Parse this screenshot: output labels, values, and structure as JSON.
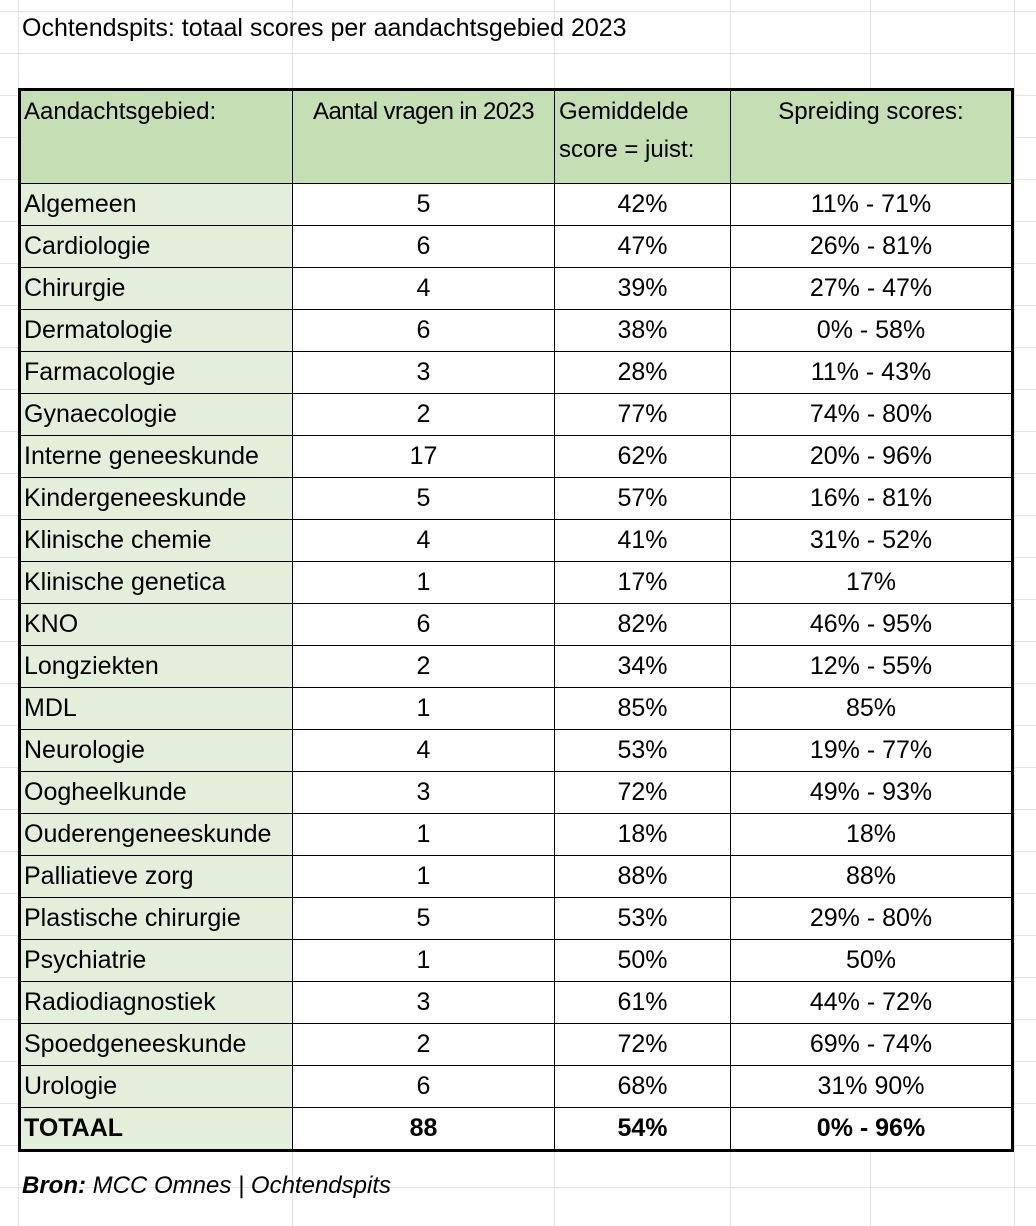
{
  "title": "Ochtendspits: totaal scores per aandachtsgebied 2023",
  "table": {
    "header": [
      "Aandachtsgebied:",
      "Aantal vragen in 2023",
      "Gemiddelde score = juist:",
      "Spreiding scores:"
    ],
    "rows": [
      [
        "Algemeen",
        "5",
        "42%",
        "11% - 71%"
      ],
      [
        "Cardiologie",
        "6",
        "47%",
        "26% - 81%"
      ],
      [
        "Chirurgie",
        "4",
        "39%",
        "27% - 47%"
      ],
      [
        "Dermatologie",
        "6",
        "38%",
        "0% - 58%"
      ],
      [
        "Farmacologie",
        "3",
        "28%",
        "11% - 43%"
      ],
      [
        "Gynaecologie",
        "2",
        "77%",
        "74% - 80%"
      ],
      [
        "Interne geneeskunde",
        "17",
        "62%",
        "20% - 96%"
      ],
      [
        "Kindergeneeskunde",
        "5",
        "57%",
        "16% - 81%"
      ],
      [
        "Klinische chemie",
        "4",
        "41%",
        "31% - 52%"
      ],
      [
        "Klinische genetica",
        "1",
        "17%",
        "17%"
      ],
      [
        "KNO",
        "6",
        "82%",
        "46% - 95%"
      ],
      [
        "Longziekten",
        "2",
        "34%",
        "12% - 55%"
      ],
      [
        "MDL",
        "1",
        "85%",
        "85%"
      ],
      [
        "Neurologie",
        "4",
        "53%",
        "19% - 77%"
      ],
      [
        "Oogheelkunde",
        "3",
        "72%",
        "49% - 93%"
      ],
      [
        "Ouderengeneeskunde",
        "1",
        "18%",
        "18%"
      ],
      [
        "Palliatieve zorg",
        "1",
        "88%",
        "88%"
      ],
      [
        "Plastische chirurgie",
        "5",
        "53%",
        "29% - 80%"
      ],
      [
        "Psychiatrie",
        "1",
        "50%",
        "50%"
      ],
      [
        "Radiodiagnostiek",
        "3",
        "61%",
        "44% - 72%"
      ],
      [
        "Spoedgeneeskunde",
        "2",
        "72%",
        "69% - 74%"
      ],
      [
        "Urologie",
        "6",
        "68%",
        "31% 90%"
      ]
    ],
    "total": [
      "TOTAAL",
      "88",
      "54%",
      "0% - 96%"
    ]
  },
  "source": {
    "label": "Bron:",
    "text": "MCC Omnes | Ochtendspits"
  }
}
